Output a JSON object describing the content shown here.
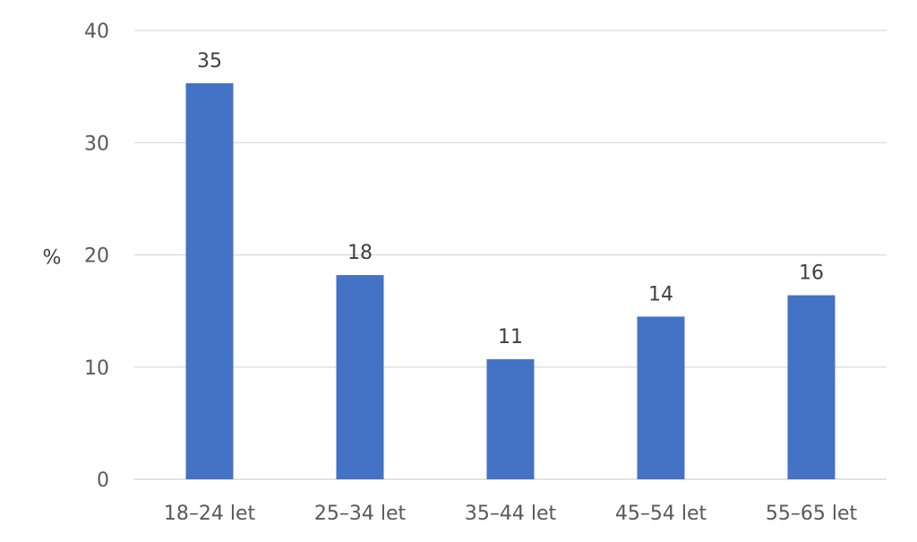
{
  "chart_data": {
    "type": "bar",
    "categories": [
      "18–24 let",
      "25–34 let",
      "35–44 let",
      "45–54 let",
      "55–65 let"
    ],
    "values": [
      35.3,
      18.2,
      10.7,
      14.5,
      16.4
    ],
    "data_labels": [
      "35",
      "18",
      "11",
      "14",
      "16"
    ],
    "ylabel": "%",
    "xlabel": "",
    "ylim": [
      0,
      40
    ],
    "yticks": [
      "0",
      "10",
      "20",
      "30",
      "40"
    ],
    "grid": true,
    "legend": "none",
    "colors": {
      "bar": "#4472C4",
      "grid": "#D9D9D9",
      "axis": "#D9D9D9"
    }
  }
}
